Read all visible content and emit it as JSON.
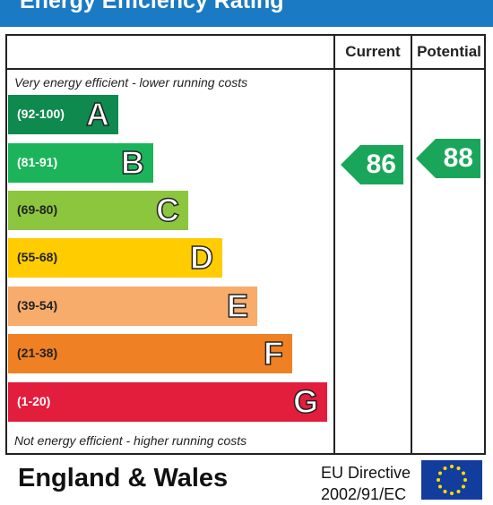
{
  "title": "Energy Efficiency Rating",
  "columns": {
    "current": "Current",
    "potential": "Potential"
  },
  "top_note": "Very energy efficient - lower running costs",
  "bottom_note": "Not energy efficient - higher running costs",
  "bands": [
    {
      "range": "(92-100)",
      "letter": "A",
      "color": "#0e8a4e",
      "range_color": "#ffffff"
    },
    {
      "range": "(81-91)",
      "letter": "B",
      "color": "#1cb45a",
      "range_color": "#ffffff"
    },
    {
      "range": "(69-80)",
      "letter": "C",
      "color": "#8cc63f",
      "range_color": "#222222"
    },
    {
      "range": "(55-68)",
      "letter": "D",
      "color": "#ffcc00",
      "range_color": "#222222"
    },
    {
      "range": "(39-54)",
      "letter": "E",
      "color": "#f7ac6b",
      "range_color": "#222222"
    },
    {
      "range": "(21-38)",
      "letter": "F",
      "color": "#ef8023",
      "range_color": "#222222"
    },
    {
      "range": "(1-20)",
      "letter": "G",
      "color": "#e31d3c",
      "range_color": "#ffffff"
    }
  ],
  "ratings": {
    "current": "86",
    "potential": "88",
    "color": "#1aa65a"
  },
  "footer": {
    "country": "England & Wales",
    "directive_line1": "EU Directive",
    "directive_line2": "2002/91/EC"
  }
}
